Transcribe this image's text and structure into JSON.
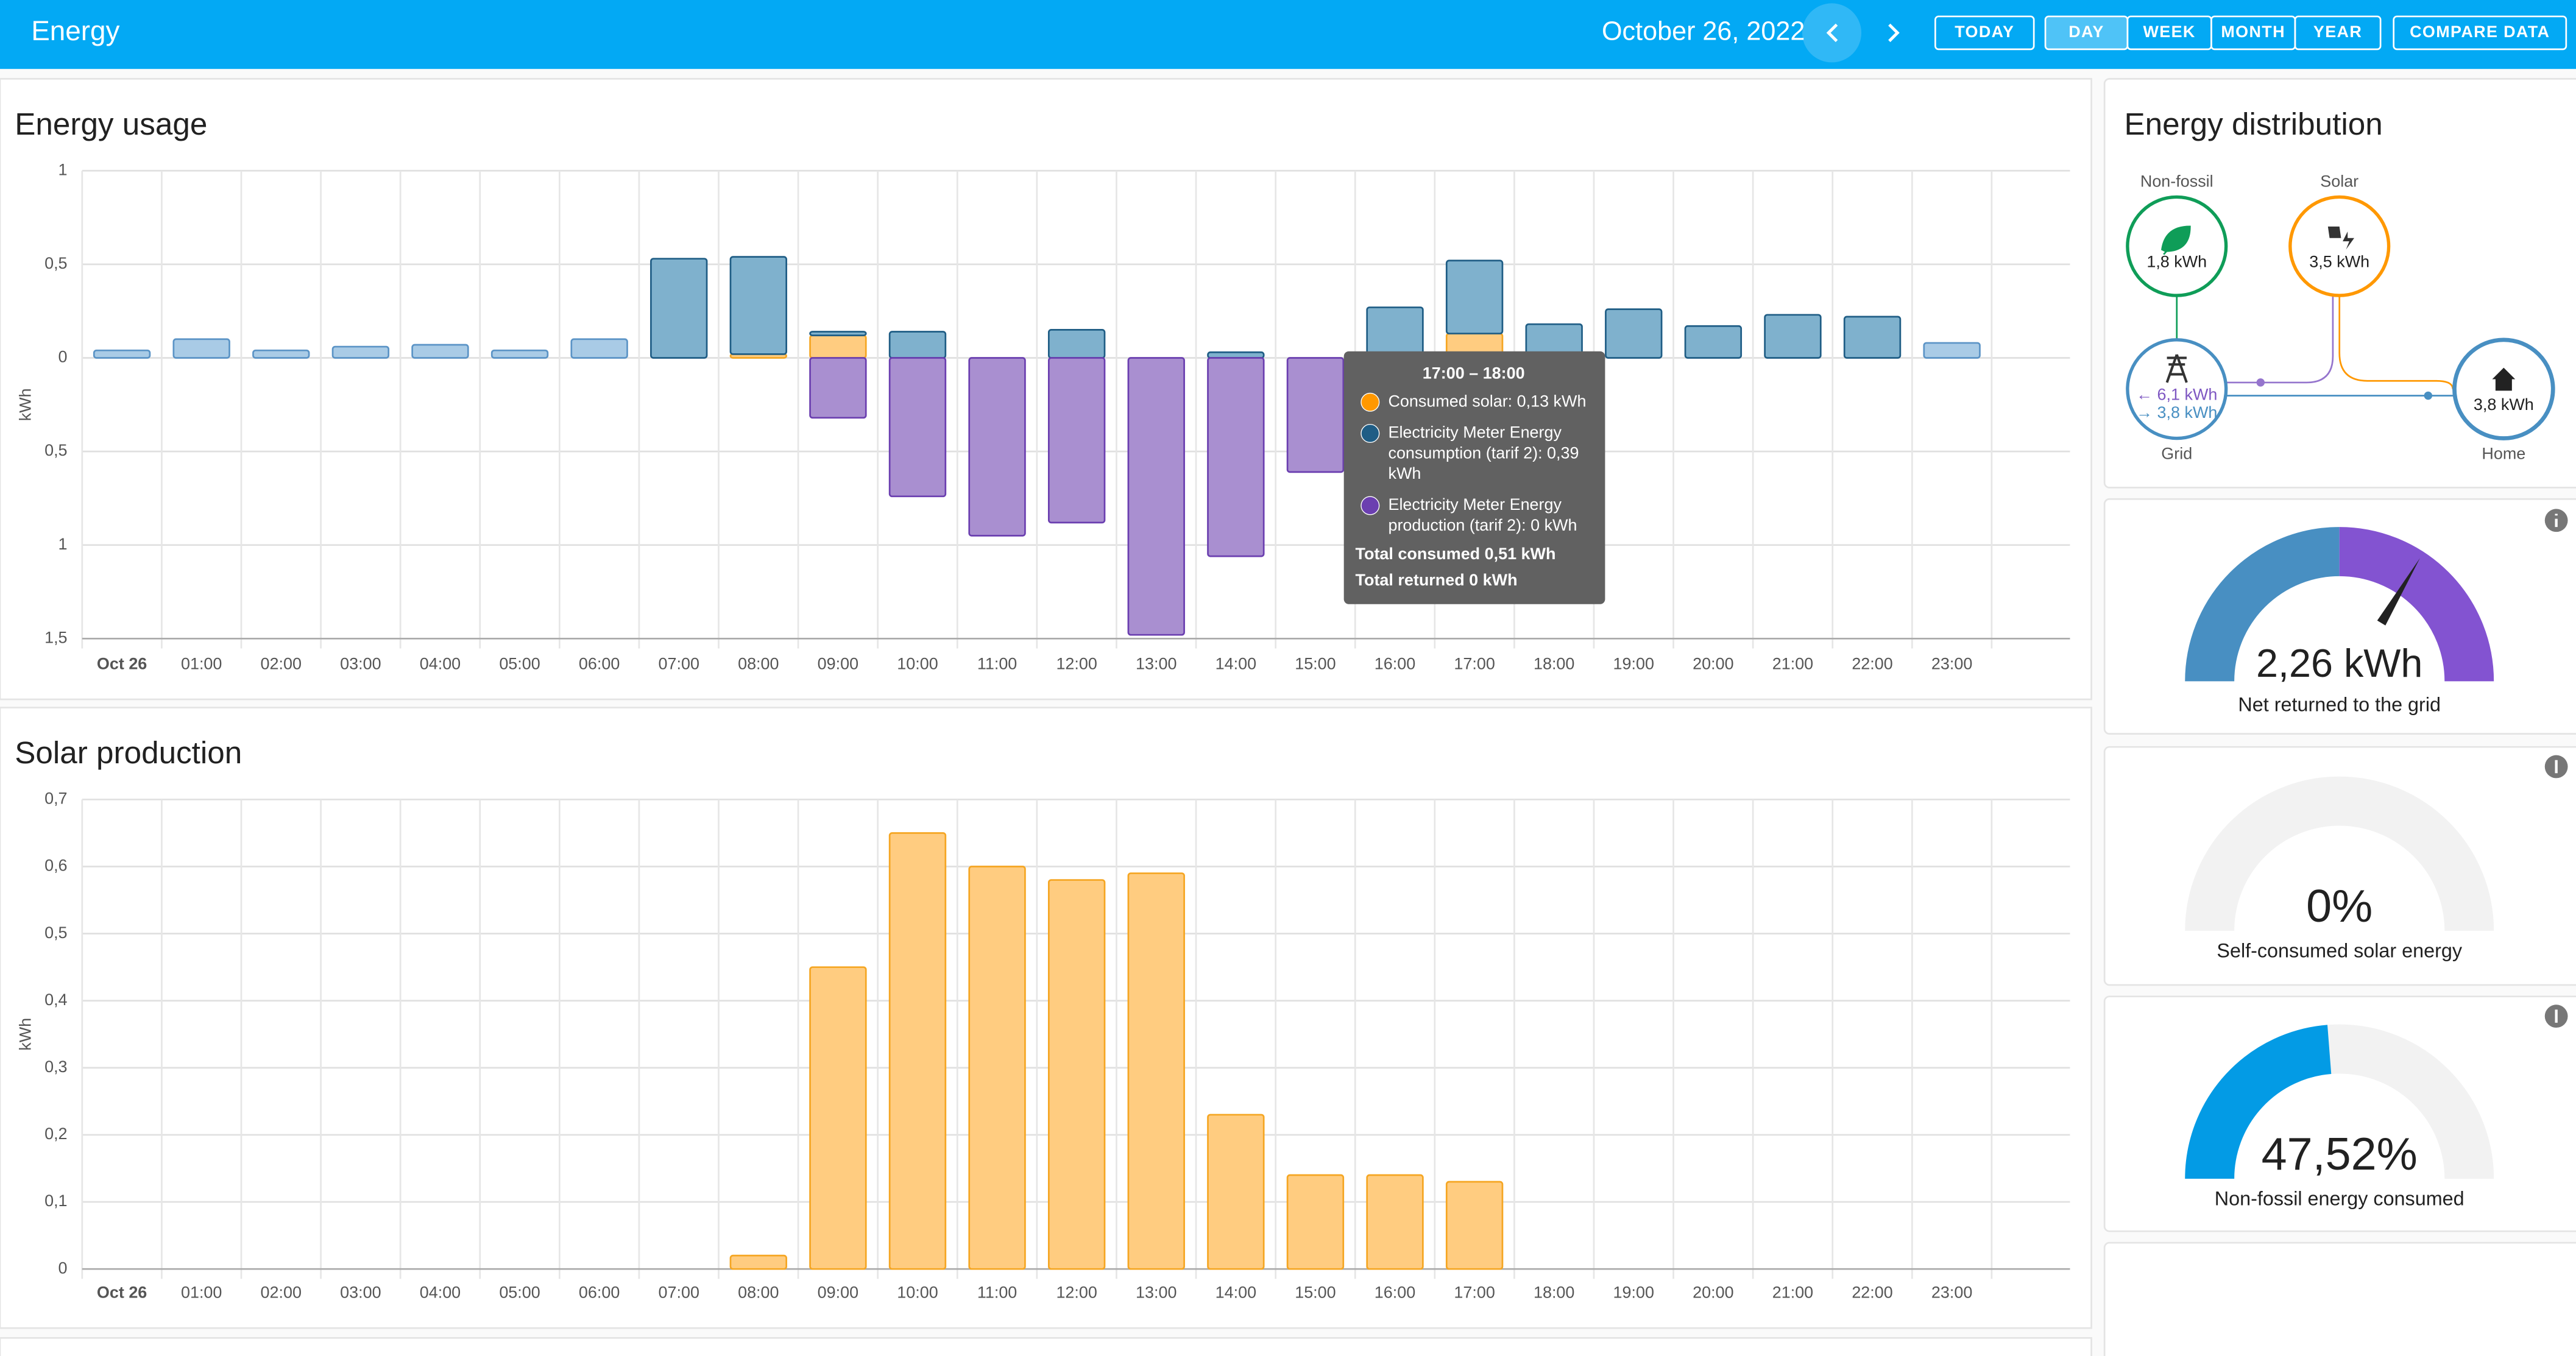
{
  "header": {
    "title": "Energy",
    "date": "October 26, 2022",
    "buttons": [
      "TODAY",
      "DAY",
      "WEEK",
      "MONTH",
      "YEAR",
      "COMPARE DATA"
    ]
  },
  "chart_data": [
    {
      "type": "bar",
      "stacked": true,
      "title": "Energy usage",
      "y_label": "kWh",
      "categories": [
        "Oct 26",
        "01:00",
        "02:00",
        "03:00",
        "04:00",
        "05:00",
        "06:00",
        "07:00",
        "08:00",
        "09:00",
        "10:00",
        "11:00",
        "12:00",
        "13:00",
        "14:00",
        "15:00",
        "16:00",
        "17:00",
        "18:00",
        "19:00",
        "20:00",
        "21:00",
        "22:00",
        "23:00"
      ],
      "ylim": [
        -1.5,
        1
      ],
      "yticks": [
        1,
        {
          "value": 0.5,
          "label": "0,5"
        },
        0,
        {
          "value": -0.5,
          "label": "0,5"
        },
        {
          "value": -1,
          "label": "1"
        },
        {
          "value": -1.5,
          "label": "1,5"
        }
      ],
      "grid": true,
      "series": [
        {
          "name": "Consumed solar",
          "color": "#ffcc80",
          "stroke": "#f5a623",
          "values": [
            0,
            0,
            0,
            0,
            0,
            0,
            0,
            0,
            0.02,
            0.12,
            0,
            0,
            0,
            0,
            0,
            0,
            0,
            0.13,
            0,
            0,
            0,
            0,
            0,
            0
          ]
        },
        {
          "color": "#a9cbe6",
          "stroke": "#5b94c6",
          "values": [
            0.04,
            0.1,
            0.04,
            0.06,
            0.07,
            0.04,
            0.1,
            null,
            null,
            null,
            null,
            null,
            null,
            null,
            null,
            null,
            null,
            null,
            null,
            null,
            null,
            null,
            null,
            0.08
          ]
        },
        {
          "name": "Electricity Meter Energy consumption (tarif 2)",
          "color": "#7fb1cd",
          "stroke": "#1f5d85",
          "values": [
            null,
            null,
            null,
            null,
            null,
            null,
            null,
            0.53,
            0.52,
            0.02,
            0.14,
            0,
            0.15,
            0,
            0.03,
            0,
            0.27,
            0.39,
            0.18,
            0.26,
            0.17,
            0.23,
            0.22,
            null
          ]
        },
        {
          "name": "Electricity Meter Energy production (tarif 2)",
          "color": "#a98fd0",
          "stroke": "#6b3fb0",
          "values": [
            0,
            0,
            0,
            0,
            0,
            0,
            0,
            0,
            0,
            -0.32,
            -0.74,
            -0.95,
            -0.88,
            -1.48,
            -1.06,
            -0.61,
            0,
            0,
            0,
            0,
            0,
            0,
            0,
            0
          ]
        }
      ]
    },
    {
      "type": "bar",
      "title": "Solar production",
      "y_label": "kWh",
      "categories": [
        "Oct 26",
        "01:00",
        "02:00",
        "03:00",
        "04:00",
        "05:00",
        "06:00",
        "07:00",
        "08:00",
        "09:00",
        "10:00",
        "11:00",
        "12:00",
        "13:00",
        "14:00",
        "15:00",
        "16:00",
        "17:00",
        "18:00",
        "19:00",
        "20:00",
        "21:00",
        "22:00",
        "23:00"
      ],
      "ylim": [
        0,
        0.7
      ],
      "yticks": [
        {
          "value": 0.7,
          "label": "0,7"
        },
        {
          "value": 0.6,
          "label": "0,6"
        },
        {
          "value": 0.5,
          "label": "0,5"
        },
        {
          "value": 0.4,
          "label": "0,4"
        },
        {
          "value": 0.3,
          "label": "0,3"
        },
        {
          "value": 0.2,
          "label": "0,2"
        },
        {
          "value": 0.1,
          "label": "0,1"
        },
        0
      ],
      "grid": true,
      "series": [
        {
          "color": "#ffcc80",
          "stroke": "#f5a623",
          "values": [
            0,
            0,
            0,
            0,
            0,
            0,
            0,
            0,
            0.02,
            0.45,
            0.65,
            0.6,
            0.58,
            0.59,
            0.23,
            0.14,
            0.14,
            0.13,
            0,
            0,
            0,
            0,
            0,
            0
          ]
        }
      ]
    }
  ],
  "tooltip": {
    "title": "17:00 – 18:00",
    "items": [
      [
        "Consumed solar: 0,13 kWh"
      ],
      [
        "Electricity Meter Energy",
        "consumption (tarif 2): 0,39",
        "kWh"
      ],
      [
        "Electricity Meter Energy",
        "production (tarif 2): 0 kWh"
      ]
    ],
    "totals": [
      "Total consumed 0,51 kWh",
      "Total returned 0 kWh"
    ]
  },
  "distribution": {
    "title": "Energy distribution",
    "non_fossil": {
      "label": "Non-fossil",
      "value": "1,8 kWh"
    },
    "solar": {
      "label": "Solar",
      "value": "3,5 kWh"
    },
    "grid": {
      "label": "Grid",
      "in": "← 6,1 kWh",
      "out": "→ 3,8 kWh"
    },
    "home": {
      "label": "Home",
      "value": "3,8 kWh"
    }
  },
  "gauges": [
    {
      "value_label": "2,26 kWh",
      "label": "Net returned to the grid"
    },
    {
      "value": 0,
      "value_label": "0%",
      "label": "Self-consumed solar energy",
      "color": "#ff9800"
    },
    {
      "value": 47.52,
      "value_label": "47,52%",
      "label": "Non-fossil energy consumed",
      "color": "#039be5"
    }
  ]
}
